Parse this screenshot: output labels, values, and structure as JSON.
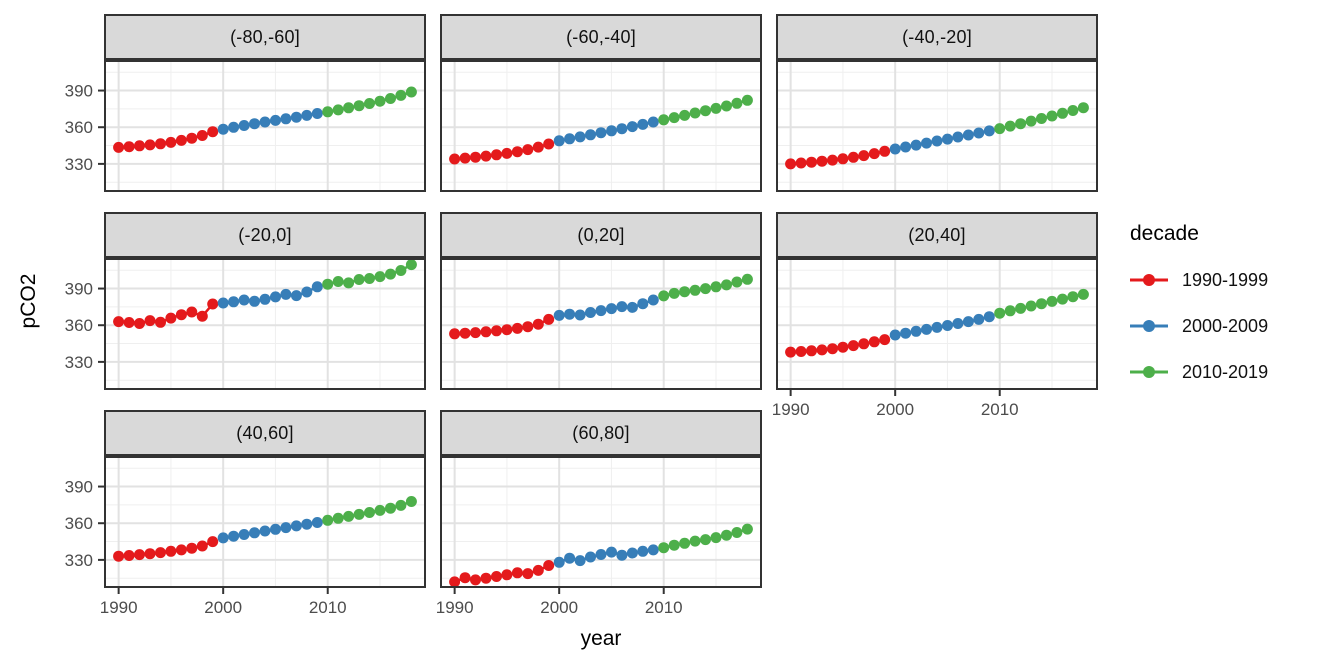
{
  "figure": {
    "background": "#ffffff"
  },
  "axes": {
    "x_title": "year",
    "y_title": "pCO2",
    "x_ticks": [
      1990,
      2000,
      2010
    ],
    "y_ticks": [
      330,
      360,
      390
    ],
    "x_minor": [
      1995,
      2005,
      2015
    ],
    "y_minor": [
      315,
      345,
      375,
      405
    ],
    "x_domain": [
      1988.6,
      2019.4
    ],
    "y_domain": [
      307,
      415
    ],
    "tick_label_color": "#4d4d4d",
    "tick_mark_color": "#333333"
  },
  "legend": {
    "title": "decade",
    "entries": [
      {
        "label": "1990-1999",
        "color": "#e41a1c"
      },
      {
        "label": "2000-2009",
        "color": "#377eb8"
      },
      {
        "label": "2010-2019",
        "color": "#4daf4a"
      }
    ]
  },
  "style": {
    "strip_background": "#d9d9d9",
    "panel_border": "#333333",
    "grid_major": "#e2e2e2",
    "grid_minor": "#efefef",
    "point_radius": 5.5
  },
  "chart_data": {
    "type": "scatter",
    "title": "",
    "xlabel": "year",
    "ylabel": "pCO2",
    "xlim": [
      1988.6,
      2019.4
    ],
    "ylim": [
      307,
      415
    ],
    "grid": true,
    "legend_position": "right",
    "facet_variable": "latitude band",
    "x": [
      1990,
      1991,
      1992,
      1993,
      1994,
      1995,
      1996,
      1997,
      1998,
      1999,
      2000,
      2001,
      2002,
      2003,
      2004,
      2005,
      2006,
      2007,
      2008,
      2009,
      2010,
      2011,
      2012,
      2013,
      2014,
      2015,
      2016,
      2017,
      2018
    ],
    "decades": [
      {
        "label": "1990-1999",
        "from": 1990,
        "to": 1999,
        "color": "#e41a1c"
      },
      {
        "label": "2000-2009",
        "from": 2000,
        "to": 2009,
        "color": "#377eb8"
      },
      {
        "label": "2010-2019",
        "from": 2010,
        "to": 2019,
        "color": "#4daf4a"
      }
    ],
    "facets": [
      {
        "label": "(-80,-60]",
        "y_axis": true,
        "x_axis": false,
        "values": [
          343.5,
          344.1,
          344.8,
          345.5,
          346.4,
          347.6,
          349.2,
          351.0,
          353.2,
          356.3,
          358.4,
          359.9,
          361.4,
          362.9,
          364.3,
          365.6,
          366.9,
          368.2,
          369.7,
          371.2,
          372.6,
          374.2,
          375.9,
          377.6,
          379.4,
          381.3,
          383.5,
          386.0,
          388.8
        ]
      },
      {
        "label": "(-60,-40]",
        "y_axis": false,
        "x_axis": false,
        "values": [
          334.0,
          334.7,
          335.5,
          336.4,
          337.4,
          338.6,
          340.0,
          341.7,
          343.7,
          346.3,
          348.9,
          350.5,
          352.1,
          353.8,
          355.5,
          357.1,
          358.8,
          360.5,
          362.3,
          364.3,
          366.1,
          367.9,
          369.7,
          371.6,
          373.5,
          375.4,
          377.4,
          379.6,
          382.0
        ]
      },
      {
        "label": "(-40,-20]",
        "y_axis": false,
        "x_axis": false,
        "values": [
          330.0,
          330.7,
          331.4,
          332.2,
          333.1,
          334.2,
          335.4,
          336.8,
          338.4,
          340.3,
          342.2,
          343.8,
          345.4,
          347.0,
          348.7,
          350.3,
          352.0,
          353.6,
          355.3,
          357.0,
          358.9,
          360.9,
          362.9,
          365.0,
          367.1,
          369.2,
          371.4,
          373.7,
          376.0
        ]
      },
      {
        "label": "(-20,0]",
        "y_axis": true,
        "x_axis": false,
        "values": [
          363.0,
          362.2,
          361.4,
          363.8,
          362.4,
          365.8,
          368.6,
          370.8,
          367.4,
          377.4,
          378.2,
          379.2,
          380.6,
          379.6,
          381.2,
          383.2,
          385.2,
          384.2,
          387.2,
          391.4,
          393.6,
          395.8,
          394.6,
          397.4,
          398.2,
          399.8,
          401.8,
          404.8,
          409.6
        ]
      },
      {
        "label": "(0,20]",
        "y_axis": false,
        "x_axis": false,
        "values": [
          353.0,
          353.5,
          354.0,
          354.6,
          355.4,
          356.3,
          357.4,
          358.8,
          360.8,
          364.8,
          368.0,
          369.0,
          368.4,
          370.4,
          372.0,
          373.6,
          375.2,
          374.6,
          377.6,
          380.6,
          384.0,
          386.0,
          387.4,
          388.6,
          390.0,
          391.4,
          393.0,
          395.4,
          397.6
        ]
      },
      {
        "label": "(20,40]",
        "y_axis": false,
        "x_axis": true,
        "values": [
          338.0,
          338.5,
          339.1,
          339.8,
          340.8,
          342.0,
          343.3,
          344.8,
          346.4,
          348.2,
          352.0,
          353.5,
          355.0,
          356.6,
          358.2,
          359.8,
          361.4,
          363.0,
          364.8,
          367.0,
          369.8,
          371.8,
          373.8,
          375.7,
          377.6,
          379.5,
          381.4,
          383.3,
          385.2
        ]
      },
      {
        "label": "(40,60]",
        "y_axis": true,
        "x_axis": true,
        "values": [
          333.0,
          333.6,
          334.3,
          335.1,
          336.0,
          337.0,
          338.2,
          339.6,
          341.4,
          345.0,
          348.0,
          349.4,
          350.8,
          352.2,
          353.6,
          355.0,
          356.4,
          357.8,
          359.2,
          360.6,
          362.4,
          364.0,
          365.6,
          367.2,
          368.8,
          370.5,
          372.3,
          374.6,
          377.8
        ]
      },
      {
        "label": "(60,80]",
        "y_axis": false,
        "x_axis": true,
        "values": [
          312.0,
          315.4,
          313.6,
          315.0,
          316.4,
          317.8,
          319.4,
          318.8,
          321.4,
          325.4,
          328.0,
          331.4,
          329.4,
          332.4,
          334.4,
          336.4,
          333.8,
          335.6,
          337.0,
          338.2,
          340.0,
          342.0,
          343.6,
          345.4,
          346.6,
          348.2,
          350.2,
          352.4,
          355.2
        ]
      }
    ]
  }
}
